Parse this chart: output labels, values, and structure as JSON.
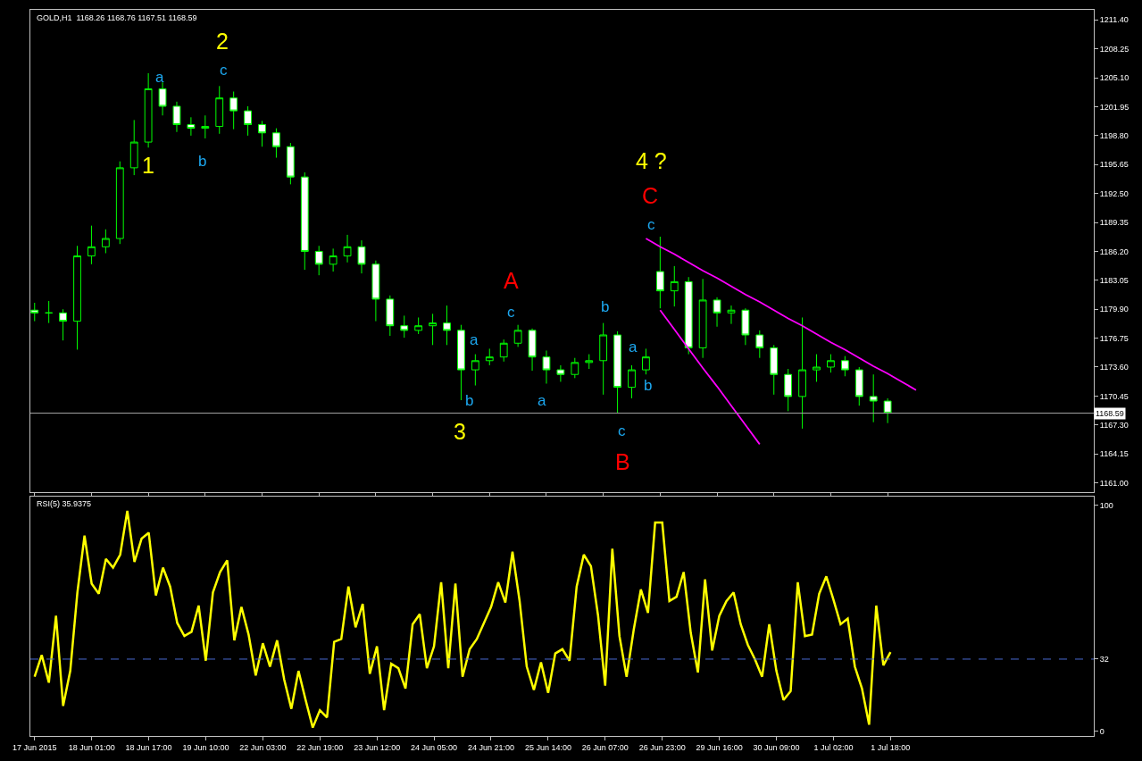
{
  "chart_data": [
    {
      "type": "candlestick",
      "title": "GOLD,H1  1168.26 1168.76 1167.51 1168.59",
      "color": "#00ff00",
      "grid": false,
      "tick_labels": "y",
      "categories": [
        null,
        null,
        null,
        null,
        null,
        null,
        null,
        null,
        null,
        null,
        null,
        null,
        null,
        null,
        null,
        null,
        null,
        null,
        null,
        null,
        null,
        null,
        null,
        null,
        null,
        null,
        null,
        null,
        null,
        null,
        null,
        null,
        null,
        null,
        null,
        null,
        null,
        null,
        null,
        null,
        null,
        null,
        null,
        null,
        null,
        null,
        null,
        null,
        null,
        null,
        null,
        null,
        null,
        null,
        null,
        null,
        null,
        null,
        null,
        null,
        null,
        null,
        null,
        null,
        null,
        null,
        null,
        null,
        null,
        null,
        null,
        null,
        null,
        null,
        null
      ],
      "ohlc": [
        [
          1179.8,
          1180.6,
          1178.6,
          1179.5
        ],
        [
          1179.5,
          1180.8,
          1178.4,
          1179.5
        ],
        [
          1179.5,
          1179.9,
          1176.5,
          1178.6
        ],
        [
          1178.6,
          1186.8,
          1175.5,
          1185.7
        ],
        [
          1185.7,
          1189.0,
          1184.8,
          1186.7
        ],
        [
          1186.7,
          1188.6,
          1186.0,
          1187.6
        ],
        [
          1187.6,
          1196.0,
          1187.0,
          1195.3
        ],
        [
          1195.3,
          1200.5,
          1194.5,
          1198.1
        ],
        [
          1198.1,
          1205.6,
          1197.5,
          1203.9
        ],
        [
          1203.9,
          1204.6,
          1201.0,
          1202.0
        ],
        [
          1202.0,
          1202.5,
          1199.2,
          1200.0
        ],
        [
          1200.0,
          1200.8,
          1198.8,
          1199.6
        ],
        [
          1199.6,
          1201.0,
          1198.5,
          1199.8
        ],
        [
          1199.8,
          1204.2,
          1199.0,
          1202.9
        ],
        [
          1202.9,
          1203.6,
          1199.5,
          1201.5
        ],
        [
          1201.5,
          1202.0,
          1198.8,
          1200.0
        ],
        [
          1200.0,
          1200.4,
          1197.6,
          1199.1
        ],
        [
          1199.1,
          1199.6,
          1196.4,
          1197.6
        ],
        [
          1197.6,
          1198.0,
          1193.5,
          1194.3
        ],
        [
          1194.3,
          1194.8,
          1184.2,
          1186.2
        ],
        [
          1186.2,
          1186.8,
          1183.6,
          1184.8
        ],
        [
          1184.8,
          1186.5,
          1184.0,
          1185.7
        ],
        [
          1185.7,
          1188.0,
          1185.0,
          1186.7
        ],
        [
          1186.7,
          1187.4,
          1183.8,
          1184.8
        ],
        [
          1184.8,
          1185.2,
          1178.6,
          1181.0
        ],
        [
          1181.0,
          1181.4,
          1177.0,
          1178.1
        ],
        [
          1178.1,
          1179.2,
          1176.8,
          1177.6
        ],
        [
          1177.6,
          1179.0,
          1177.2,
          1178.1
        ],
        [
          1178.1,
          1179.4,
          1176.0,
          1178.4
        ],
        [
          1178.4,
          1180.3,
          1176.0,
          1177.6
        ],
        [
          1177.6,
          1178.2,
          1170.0,
          1173.3
        ],
        [
          1173.3,
          1175.0,
          1171.6,
          1174.3
        ],
        [
          1174.3,
          1175.6,
          1173.8,
          1174.7
        ],
        [
          1174.7,
          1176.6,
          1174.2,
          1176.2
        ],
        [
          1176.2,
          1178.2,
          1175.8,
          1177.6
        ],
        [
          1177.6,
          1177.8,
          1173.2,
          1174.7
        ],
        [
          1174.7,
          1175.4,
          1171.8,
          1173.3
        ],
        [
          1173.3,
          1173.8,
          1172.0,
          1172.8
        ],
        [
          1172.8,
          1174.6,
          1172.4,
          1174.1
        ],
        [
          1174.1,
          1175.0,
          1173.4,
          1174.3
        ],
        [
          1174.3,
          1178.4,
          1170.6,
          1177.1
        ],
        [
          1177.1,
          1177.5,
          1168.6,
          1171.4
        ],
        [
          1171.4,
          1173.8,
          1170.2,
          1173.3
        ],
        [
          1173.3,
          1175.6,
          1172.8,
          1174.7
        ],
        [
          1184.0,
          1187.8,
          1180.0,
          1181.9
        ],
        [
          1181.9,
          1184.6,
          1180.2,
          1182.9
        ],
        [
          1182.9,
          1183.4,
          1175.0,
          1175.7
        ],
        [
          1175.7,
          1183.2,
          1174.6,
          1180.9
        ],
        [
          1180.9,
          1181.2,
          1178.0,
          1179.5
        ],
        [
          1179.5,
          1180.3,
          1178.3,
          1179.8
        ],
        [
          1179.8,
          1180.0,
          1176.0,
          1177.1
        ],
        [
          1177.1,
          1177.6,
          1174.6,
          1175.7
        ],
        [
          1175.7,
          1176.0,
          1170.6,
          1172.8
        ],
        [
          1172.8,
          1173.4,
          1168.8,
          1170.4
        ],
        [
          1170.4,
          1179.0,
          1166.9,
          1173.3
        ],
        [
          1173.3,
          1175.0,
          1172.0,
          1173.6
        ],
        [
          1173.6,
          1175.0,
          1173.0,
          1174.3
        ],
        [
          1174.3,
          1174.8,
          1172.6,
          1173.3
        ],
        [
          1173.3,
          1173.6,
          1169.4,
          1170.4
        ],
        [
          1170.4,
          1172.8,
          1167.6,
          1169.9
        ],
        [
          1169.9,
          1170.2,
          1167.5,
          1168.6
        ],
        null,
        null,
        null,
        null,
        null,
        null,
        null,
        null,
        null,
        null,
        null,
        null,
        null,
        null
      ],
      "series": [
        {
          "type": "line",
          "color": "#ff00ff",
          "values": [
            null,
            null,
            null,
            null,
            null,
            null,
            null,
            null,
            null,
            null,
            null,
            null,
            null,
            null,
            null,
            null,
            null,
            null,
            null,
            null,
            null,
            null,
            null,
            null,
            null,
            null,
            null,
            null,
            null,
            null,
            null,
            null,
            null,
            null,
            null,
            null,
            null,
            null,
            null,
            null,
            null,
            null,
            null,
            1187.6,
            1186.7,
            1185.9,
            1185.0,
            1184.1,
            1183.3,
            1182.4,
            1181.5,
            1180.7,
            1179.8,
            1178.9,
            1178.1,
            1177.2,
            1176.3,
            1175.5,
            1174.6,
            1173.7,
            1172.9,
            1172.0,
            1171.1,
            null,
            null,
            null,
            null,
            null,
            null,
            null,
            null,
            null,
            null,
            null,
            null
          ]
        },
        {
          "type": "line",
          "color": "#ff00ff",
          "values": [
            null,
            null,
            null,
            null,
            null,
            null,
            null,
            null,
            null,
            null,
            null,
            null,
            null,
            null,
            null,
            null,
            null,
            null,
            null,
            null,
            null,
            null,
            null,
            null,
            null,
            null,
            null,
            null,
            null,
            null,
            null,
            null,
            null,
            null,
            null,
            null,
            null,
            null,
            null,
            null,
            null,
            null,
            null,
            null,
            1179.8,
            1177.7,
            1175.6,
            1173.5,
            1171.5,
            1169.4,
            1167.3,
            1165.2,
            null,
            null,
            null,
            null,
            null,
            null,
            null,
            null,
            null,
            null,
            null,
            null,
            null,
            null,
            null,
            null,
            null,
            null,
            null,
            null,
            null,
            null,
            null
          ]
        }
      ],
      "ylim": [
        1160.0,
        1212.5
      ],
      "yticks": [
        {
          "value": 1161.0,
          "label": "1161.00"
        },
        {
          "value": 1164.15,
          "label": "1164.15"
        },
        {
          "value": 1167.3,
          "label": "1167.30"
        },
        {
          "value": 1170.45,
          "label": "1170.45"
        },
        {
          "value": 1173.6,
          "label": "1173.60"
        },
        {
          "value": 1176.75,
          "label": "1176.75"
        },
        {
          "value": 1179.9,
          "label": "1179.90"
        },
        {
          "value": 1183.05,
          "label": "1183.05"
        },
        {
          "value": 1186.2,
          "label": "1186.20"
        },
        {
          "value": 1189.35,
          "label": "1189.35"
        },
        {
          "value": 1192.5,
          "label": "1192.50"
        },
        {
          "value": 1195.65,
          "label": "1195.65"
        },
        {
          "value": 1198.8,
          "label": "1198.80"
        },
        {
          "value": 1201.95,
          "label": "1201.95"
        },
        {
          "value": 1205.1,
          "label": "1205.10"
        },
        {
          "value": 1208.25,
          "label": "1208.25"
        },
        {
          "value": 1211.4,
          "label": "1211.40"
        }
      ],
      "ref_lines": [
        {
          "axis": "y",
          "value": 1168.59,
          "label": "1168.59",
          "color": "#a0a0a0"
        }
      ],
      "annotations": [
        "2",
        "c",
        "a",
        "1",
        "b",
        "4 ?",
        "C",
        "c",
        "A",
        "c",
        "b",
        "a",
        "a",
        "b",
        "a",
        "b",
        "3",
        "c",
        "B"
      ]
    },
    {
      "type": "line",
      "title": "RSI(5) 35.9375",
      "color": "#ffff00",
      "grid": false,
      "line_style": "solid",
      "categories": [
        "17 Jun 2015",
        null,
        null,
        null,
        null,
        null,
        null,
        null,
        "18 Jun 01:00",
        null,
        null,
        null,
        null,
        null,
        null,
        null,
        "18 Jun 17:00",
        null,
        null,
        null,
        null,
        null,
        null,
        null,
        "19 Jun 10:00",
        null,
        null,
        null,
        null,
        null,
        null,
        null,
        "22 Jun 03:00",
        null,
        null,
        null,
        null,
        null,
        null,
        null,
        "22 Jun 19:00",
        null,
        null,
        null,
        null,
        null,
        null,
        null,
        "23 Jun 12:00",
        null,
        null,
        null,
        null,
        null,
        null,
        null,
        "24 Jun 05:00",
        null,
        null,
        null,
        null,
        null,
        null,
        null,
        "24 Jun 21:00",
        null,
        null,
        null,
        null,
        null,
        null,
        null,
        "25 Jun 14:00",
        null,
        null,
        null,
        null,
        null,
        null,
        null,
        "26 Jun 07:00",
        null,
        null,
        null,
        null,
        null,
        null,
        null,
        "26 Jun 23:00",
        null,
        null,
        null,
        null,
        null,
        null,
        null,
        "29 Jun 16:00",
        null,
        null,
        null,
        null,
        null,
        null,
        null,
        "30 Jun 09:00",
        null,
        null,
        null,
        null,
        null,
        null,
        null,
        "1 Jul 02:00",
        null,
        null,
        null,
        null,
        null,
        null,
        null,
        "1 Jul 18:00",
        null,
        null,
        null,
        null,
        null,
        null,
        null,
        null,
        null,
        null,
        null,
        null,
        null,
        null,
        null,
        null,
        null,
        null,
        null,
        null,
        null,
        null,
        null,
        null,
        null,
        null,
        null,
        null
      ],
      "values": [
        24.2,
        33.8,
        21.6,
        51.2,
        11.3,
        26.8,
        61.5,
        86.6,
        65.4,
        60.9,
        76.3,
        72.5,
        78.2,
        97.6,
        75.0,
        85.3,
        87.9,
        60.2,
        72.5,
        64.1,
        48.0,
        42.2,
        44.1,
        55.7,
        31.3,
        61.5,
        70.5,
        75.7,
        40.3,
        55.1,
        42.9,
        24.8,
        39.0,
        28.7,
        40.3,
        22.9,
        10.0,
        26.8,
        13.9,
        1.7,
        9.4,
        6.2,
        39.6,
        40.9,
        64.1,
        46.1,
        56.4,
        25.5,
        37.7,
        9.4,
        30.0,
        28.0,
        19.0,
        47.4,
        51.9,
        28.0,
        37.7,
        66.0,
        28.0,
        65.4,
        24.2,
        36.4,
        40.9,
        48.0,
        55.1,
        66.0,
        57.0,
        79.5,
        57.7,
        28.7,
        18.4,
        30.6,
        17.1,
        34.5,
        36.4,
        31.3,
        64.1,
        78.2,
        73.1,
        51.2,
        20.3,
        80.8,
        42.2,
        24.2,
        45.0,
        62.8,
        52.5,
        92.4,
        92.4,
        57.7,
        59.6,
        70.5,
        43.5,
        26.1,
        67.3,
        35.8,
        51.2,
        57.7,
        61.5,
        47.4,
        38.3,
        31.9,
        24.2,
        47.4,
        26.8,
        13.9,
        17.8,
        66.0,
        42.2,
        42.9,
        60.9,
        68.6,
        58.3,
        47.4,
        49.9,
        28.7,
        19.0,
        3.0,
        55.7,
        29.3,
        35.1,
        null,
        null,
        null,
        null,
        null,
        null,
        null,
        null,
        null,
        null,
        null,
        null,
        null,
        null,
        null,
        null,
        null,
        null,
        null,
        null,
        null,
        null,
        null,
        null,
        null,
        null,
        null,
        null
      ],
      "ylim": [
        -2,
        104
      ],
      "yticks": [
        0,
        32,
        100
      ],
      "ref_lines": [
        {
          "axis": "y",
          "value": 32,
          "color": "#4a6cd4",
          "line_style": "dashed"
        }
      ]
    }
  ]
}
